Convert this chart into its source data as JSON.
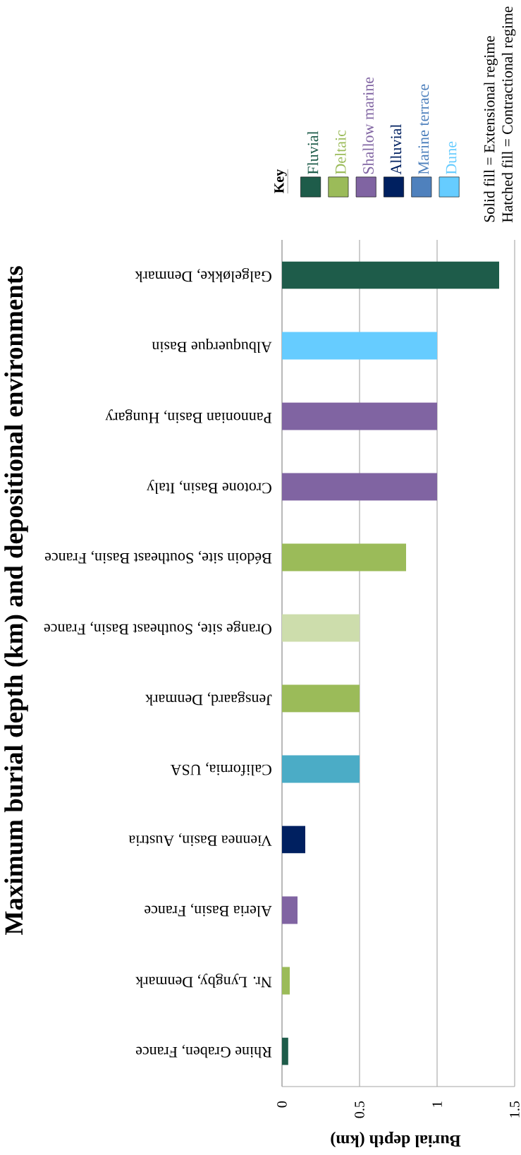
{
  "chart_data": {
    "type": "bar",
    "orientation": "horizontal",
    "title": "Maximum burial depth (km) and depositional environments",
    "xlabel": "Burial depth (km)",
    "legend_title": "Key",
    "categories": [
      "Galgeløkke, Denmark",
      "Albuquerque Basin",
      "Pannonian Basin, Hungary",
      "Crotone Basin, Italy",
      "Bédoin site, Southeast Basin, France",
      "Orange site, Southeast Basin, France",
      "Jensgaard, Denmark",
      "California, USA",
      "Viennea Basin, Austria",
      "Aleria Basin, France",
      "Nr. Lyngby, Denmark",
      "Rhine Graben, France"
    ],
    "series": [
      {
        "name": "Fluvial",
        "color": "#1e5c4a",
        "values": [
          1.4,
          null,
          null,
          null,
          null,
          null,
          null,
          null,
          null,
          null,
          null,
          0.04
        ]
      },
      {
        "name": "Deltaic",
        "color": "#9bbb59",
        "values": [
          null,
          null,
          null,
          null,
          0.8,
          0.5,
          0.5,
          null,
          null,
          null,
          0.05,
          null
        ],
        "colors": [
          null,
          null,
          null,
          null,
          null,
          "#cdddac",
          null,
          null,
          null,
          null,
          null,
          null
        ]
      },
      {
        "name": "Shallow marine",
        "color": "#8064a2",
        "values": [
          null,
          null,
          1,
          1,
          null,
          null,
          null,
          null,
          null,
          0.1,
          null,
          null
        ]
      },
      {
        "name": "Alluvial",
        "color": "#002060",
        "values": [
          null,
          null,
          null,
          null,
          null,
          null,
          null,
          null,
          0.15,
          null,
          null,
          null
        ]
      },
      {
        "name": "Marine terrace",
        "color": "#4f81bd",
        "values": [
          null,
          null,
          null,
          null,
          null,
          null,
          null,
          null,
          null,
          null,
          null,
          null
        ]
      },
      {
        "name": "Dune",
        "color": "#66ccff",
        "values": [
          null,
          1,
          null,
          null,
          null,
          null,
          null,
          null,
          null,
          null,
          null,
          null
        ]
      },
      {
        "color": "#4bacc6",
        "values": [
          null,
          null,
          null,
          null,
          null,
          null,
          null,
          0.5,
          null,
          null,
          null,
          null
        ]
      }
    ],
    "xlim": [
      0,
      1.5
    ],
    "xticks": [
      0,
      0.5,
      1,
      1.5
    ],
    "grid": "x",
    "legend": "top left",
    "annotations": [
      "Solid fill = Extensional regime",
      "Hatched fill = Contractional regime"
    ]
  }
}
